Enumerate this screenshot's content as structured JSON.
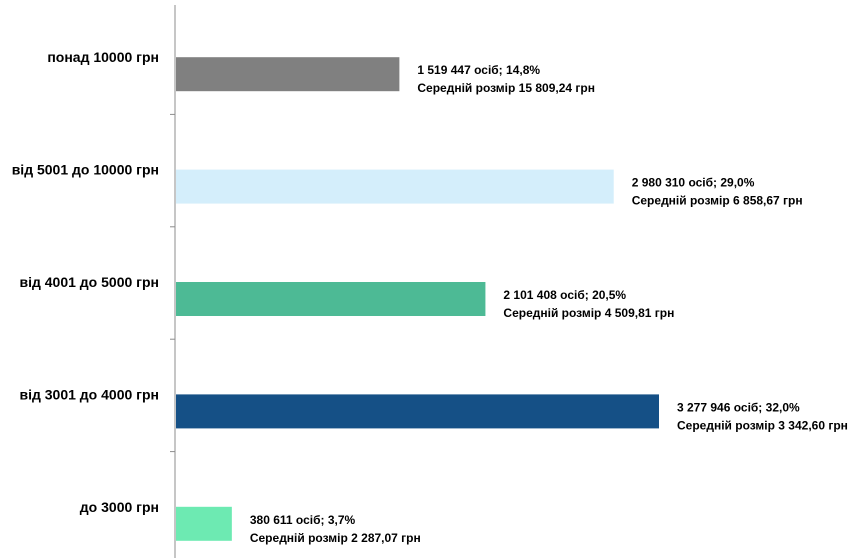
{
  "chart_data": {
    "type": "bar",
    "orientation": "horizontal",
    "categories": [
      "понад 10000 грн",
      "від 5001 до 10000 грн",
      "від 4001 до 5000 грн",
      "від 3001 до 4000 грн",
      "до 3000 грн"
    ],
    "values": [
      14.8,
      29.0,
      20.5,
      32.0,
      3.7
    ],
    "counts": [
      "1 519 447 осіб",
      "2 980 310 осіб",
      "2 101 408 осіб",
      "3 277 946 осіб",
      "380 611 осіб"
    ],
    "percent_labels": [
      "14,8%",
      "29,0%",
      "20,5%",
      "32,0%",
      "3,7%"
    ],
    "label_line1": [
      "1 519 447 осіб;  14,8%",
      "2 980 310 осіб; 29,0%",
      "2 101 408 осіб; 20,5%",
      "3 277 946 осіб; 32,0%",
      "380 611 осіб; 3,7%"
    ],
    "label_line2": [
      "Середній розмір 15 809,24 грн",
      "Середній розмір 6 858,67 грн",
      "Середній розмір 4 509,81 грн",
      "Середній розмір 3 342,60 грн",
      "Середній розмір 2 287,07 грн"
    ],
    "colors": [
      "#808080",
      "#d4eefb",
      "#4dba95",
      "#155086",
      "#6deab2"
    ],
    "title": "",
    "xlabel": "",
    "ylabel": "",
    "xlim": [
      0,
      32.0
    ],
    "grid": false,
    "legend": "none"
  }
}
